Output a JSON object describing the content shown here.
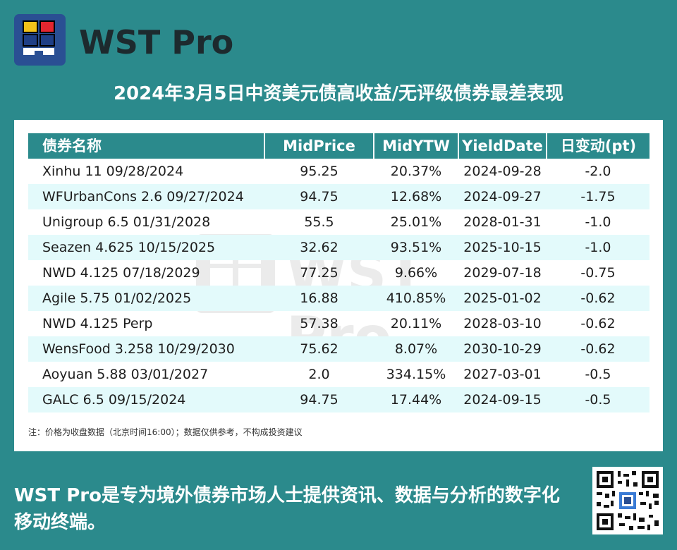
{
  "brand": {
    "name": "WST Pro",
    "logo_icon": "wst-pro-logo-icon"
  },
  "title": "2024年3月5日中资美元债高收益/无评级债券最差表现",
  "table": {
    "headers": [
      "债券名称",
      "MidPrice",
      "MidYTW",
      "YieldDate",
      "日变动(pt)"
    ],
    "rows": [
      [
        "Xinhu 11 09/28/2024",
        "95.25",
        "20.37%",
        "2024-09-28",
        "-2.0"
      ],
      [
        "WFUrbanCons 2.6 09/27/2024",
        "94.75",
        "12.68%",
        "2024-09-27",
        "-1.75"
      ],
      [
        "Unigroup 6.5 01/31/2028",
        "55.5",
        "25.01%",
        "2028-01-31",
        "-1.0"
      ],
      [
        "Seazen 4.625 10/15/2025",
        "32.62",
        "93.51%",
        "2025-10-15",
        "-1.0"
      ],
      [
        "NWD 4.125 07/18/2029",
        "77.25",
        "9.66%",
        "2029-07-18",
        "-0.75"
      ],
      [
        "Agile 5.75 01/02/2025",
        "16.88",
        "410.85%",
        "2025-01-02",
        "-0.62"
      ],
      [
        "NWD 4.125 Perp",
        "57.38",
        "20.11%",
        "2028-03-10",
        "-0.62"
      ],
      [
        "WensFood 3.258 10/29/2030",
        "75.62",
        "8.07%",
        "2030-10-29",
        "-0.62"
      ],
      [
        "Aoyuan 5.88 03/01/2027",
        "2.0",
        "334.15%",
        "2027-03-01",
        "-0.5"
      ],
      [
        "GALC 6.5 09/15/2024",
        "94.75",
        "17.44%",
        "2024-09-15",
        "-0.5"
      ]
    ]
  },
  "note": "注：价格为收盘数据（北京时间16:00）；数据仅供参考，不构成投资建议",
  "footer": "WST Pro是专为境外债券市场人士提供资讯、数据与分析的数字化移动终端。",
  "colors": {
    "background": "#2b8a8c",
    "logo_blue": "#2a4f93",
    "header": "#2b8a8c",
    "row_alt": "#e3fafb"
  }
}
